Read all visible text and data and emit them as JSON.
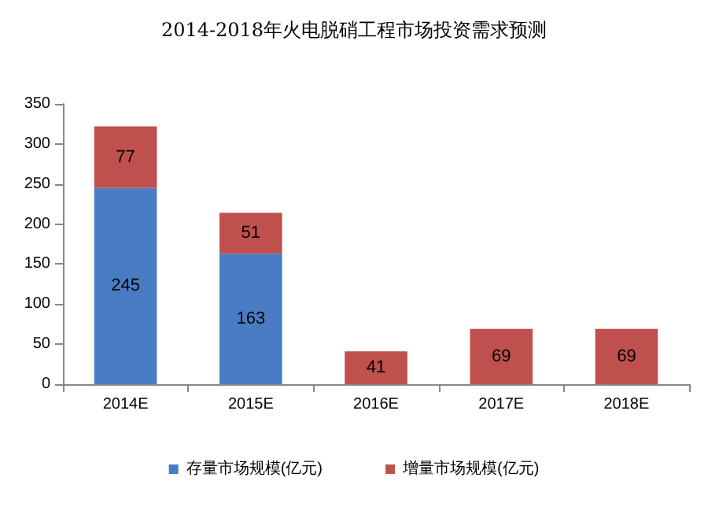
{
  "chart_data": {
    "type": "bar",
    "title": "2014-2018年火电脱硝工程市场投资需求预测",
    "categories": [
      "2014E",
      "2015E",
      "2016E",
      "2017E",
      "2018E"
    ],
    "series": [
      {
        "name": "存量市场规模(亿元)",
        "color": "#4a7cc4",
        "values": [
          245,
          163,
          null,
          null,
          null
        ]
      },
      {
        "name": "增量市场规模(亿元)",
        "color": "#c0504d",
        "values": [
          77,
          51,
          41,
          69,
          69
        ]
      }
    ],
    "stacked": true,
    "data_labels": true,
    "ylim": [
      0,
      350
    ],
    "yticks": [
      0,
      50,
      100,
      150,
      200,
      250,
      300,
      350
    ],
    "grid": false,
    "legend": "bottom"
  }
}
